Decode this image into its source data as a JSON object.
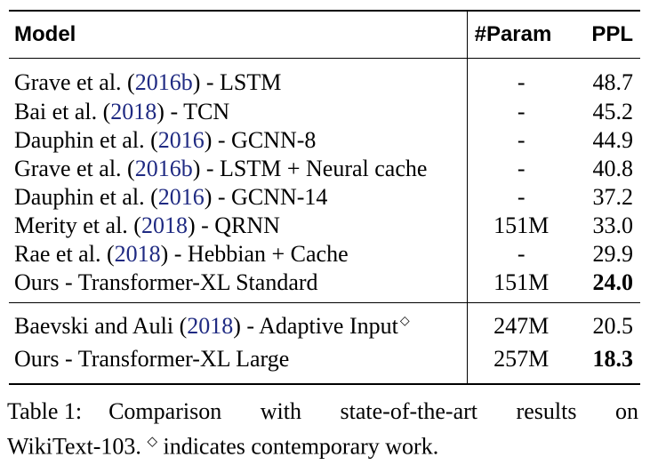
{
  "table": {
    "headers": {
      "model": "Model",
      "param": "#Param",
      "ppl": "PPL"
    },
    "group1": [
      {
        "author": "Grave et al. (",
        "year": "2016b",
        "suffix": ") - LSTM",
        "param": "-",
        "ppl": "48.7",
        "bold": false
      },
      {
        "author": "Bai et al. (",
        "year": "2018",
        "suffix": ") - TCN",
        "param": "-",
        "ppl": "45.2",
        "bold": false
      },
      {
        "author": "Dauphin et al. (",
        "year": "2016",
        "suffix": ") - GCNN-8",
        "param": "-",
        "ppl": "44.9",
        "bold": false
      },
      {
        "author": "Grave et al. (",
        "year": "2016b",
        "suffix": ") - LSTM + Neural cache",
        "param": "-",
        "ppl": "40.8",
        "bold": false
      },
      {
        "author": "Dauphin et al. (",
        "year": "2016",
        "suffix": ") - GCNN-14",
        "param": "-",
        "ppl": "37.2",
        "bold": false
      },
      {
        "author": "Merity et al. (",
        "year": "2018",
        "suffix": ") - QRNN",
        "param": "151M",
        "ppl": "33.0",
        "bold": false
      },
      {
        "author": "Rae et al. (",
        "year": "2018",
        "suffix": ") - Hebbian + Cache",
        "param": "-",
        "ppl": "29.9",
        "bold": false
      },
      {
        "plain": "Ours - Transformer-XL Standard",
        "param": "151M",
        "ppl": "24.0",
        "bold": true
      }
    ],
    "group2": [
      {
        "author": "Baevski and Auli (",
        "year": "2018",
        "suffix": ") - Adaptive Input",
        "marker": "◇",
        "param": "247M",
        "ppl": "20.5",
        "bold": false
      },
      {
        "plain": "Ours - Transformer-XL Large",
        "param": "257M",
        "ppl": "18.3",
        "bold": true
      }
    ]
  },
  "caption": {
    "label": "Table 1:",
    "text_line1": "Comparison with state-of-the-art results on",
    "text_line2_prefix": "WikiText-103.",
    "marker": "◇",
    "text_line2_suffix": "indicates contemporary work."
  },
  "colors": {
    "citation": "#1f2a82",
    "text": "#000000"
  }
}
